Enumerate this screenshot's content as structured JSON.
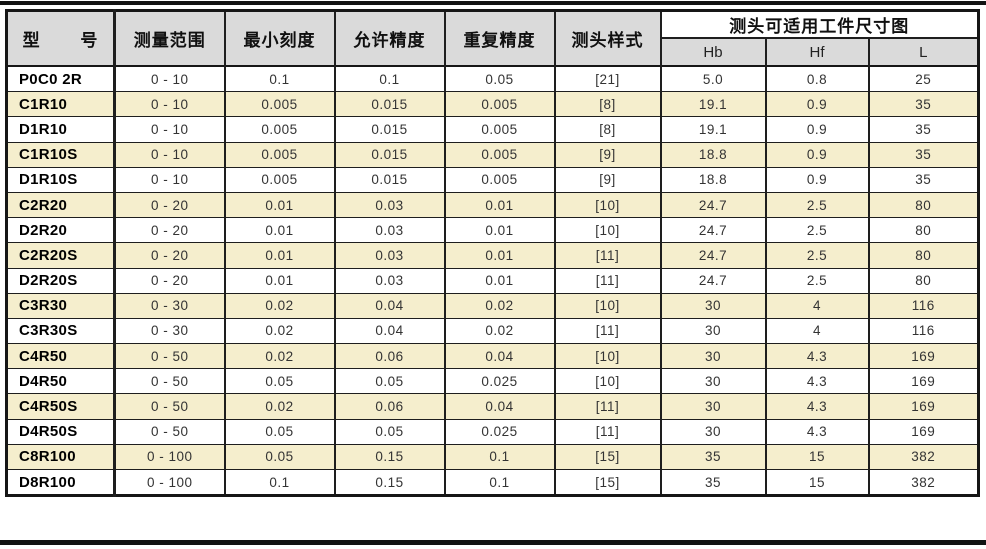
{
  "colors": {
    "header_bg": "#dadada",
    "highlight_row_bg": "#f5eecd",
    "border": "#1e1e1e",
    "page_bg": "#ffffff"
  },
  "table": {
    "headers": {
      "model": "型 号",
      "range": "测量范围",
      "min_scale": "最小刻度",
      "allowed_precision": "允许精度",
      "repeat_precision": "重复精度",
      "probe_style": "测头样式",
      "size_group": "测头可适用工件尺寸图",
      "hb": "Hb",
      "hf": "Hf",
      "l": "L"
    },
    "rows": [
      {
        "model": "P0C0 2R",
        "range": "0 - 10",
        "min": "0.1",
        "allowed": "0.1",
        "repeat": "0.05",
        "style": "[21]",
        "hb": "5.0",
        "hf": "0.8",
        "l": "25",
        "hl": false
      },
      {
        "model": "C1R10",
        "range": "0 - 10",
        "min": "0.005",
        "allowed": "0.015",
        "repeat": "0.005",
        "style": "[8]",
        "hb": "19.1",
        "hf": "0.9",
        "l": "35",
        "hl": true
      },
      {
        "model": "D1R10",
        "range": "0 - 10",
        "min": "0.005",
        "allowed": "0.015",
        "repeat": "0.005",
        "style": "[8]",
        "hb": "19.1",
        "hf": "0.9",
        "l": "35",
        "hl": false
      },
      {
        "model": "C1R10S",
        "range": "0 - 10",
        "min": "0.005",
        "allowed": "0.015",
        "repeat": "0.005",
        "style": "[9]",
        "hb": "18.8",
        "hf": "0.9",
        "l": "35",
        "hl": true
      },
      {
        "model": "D1R10S",
        "range": "0 - 10",
        "min": "0.005",
        "allowed": "0.015",
        "repeat": "0.005",
        "style": "[9]",
        "hb": "18.8",
        "hf": "0.9",
        "l": "35",
        "hl": false
      },
      {
        "model": "C2R20",
        "range": "0 - 20",
        "min": "0.01",
        "allowed": "0.03",
        "repeat": "0.01",
        "style": "[10]",
        "hb": "24.7",
        "hf": "2.5",
        "l": "80",
        "hl": true
      },
      {
        "model": "D2R20",
        "range": "0 - 20",
        "min": "0.01",
        "allowed": "0.03",
        "repeat": "0.01",
        "style": "[10]",
        "hb": "24.7",
        "hf": "2.5",
        "l": "80",
        "hl": false
      },
      {
        "model": "C2R20S",
        "range": "0 - 20",
        "min": "0.01",
        "allowed": "0.03",
        "repeat": "0.01",
        "style": "[11]",
        "hb": "24.7",
        "hf": "2.5",
        "l": "80",
        "hl": true
      },
      {
        "model": "D2R20S",
        "range": "0 - 20",
        "min": "0.01",
        "allowed": "0.03",
        "repeat": "0.01",
        "style": "[11]",
        "hb": "24.7",
        "hf": "2.5",
        "l": "80",
        "hl": false
      },
      {
        "model": "C3R30",
        "range": "0 - 30",
        "min": "0.02",
        "allowed": "0.04",
        "repeat": "0.02",
        "style": "[10]",
        "hb": "30",
        "hf": "4",
        "l": "116",
        "hl": true
      },
      {
        "model": "C3R30S",
        "range": "0 - 30",
        "min": "0.02",
        "allowed": "0.04",
        "repeat": "0.02",
        "style": "[11]",
        "hb": "30",
        "hf": "4",
        "l": "116",
        "hl": false
      },
      {
        "model": "C4R50",
        "range": "0 - 50",
        "min": "0.02",
        "allowed": "0.06",
        "repeat": "0.04",
        "style": "[10]",
        "hb": "30",
        "hf": "4.3",
        "l": "169",
        "hl": true
      },
      {
        "model": "D4R50",
        "range": "0 - 50",
        "min": "0.05",
        "allowed": "0.05",
        "repeat": "0.025",
        "style": "[10]",
        "hb": "30",
        "hf": "4.3",
        "l": "169",
        "hl": false
      },
      {
        "model": "C4R50S",
        "range": "0 - 50",
        "min": "0.02",
        "allowed": "0.06",
        "repeat": "0.04",
        "style": "[11]",
        "hb": "30",
        "hf": "4.3",
        "l": "169",
        "hl": true
      },
      {
        "model": "D4R50S",
        "range": "0 - 50",
        "min": "0.05",
        "allowed": "0.05",
        "repeat": "0.025",
        "style": "[11]",
        "hb": "30",
        "hf": "4.3",
        "l": "169",
        "hl": false
      },
      {
        "model": "C8R100",
        "range": "0 - 100",
        "min": "0.05",
        "allowed": "0.15",
        "repeat": "0.1",
        "style": "[15]",
        "hb": "35",
        "hf": "15",
        "l": "382",
        "hl": true
      },
      {
        "model": "D8R100",
        "range": "0 - 100",
        "min": "0.1",
        "allowed": "0.15",
        "repeat": "0.1",
        "style": "[15]",
        "hb": "35",
        "hf": "15",
        "l": "382",
        "hl": false
      }
    ]
  }
}
